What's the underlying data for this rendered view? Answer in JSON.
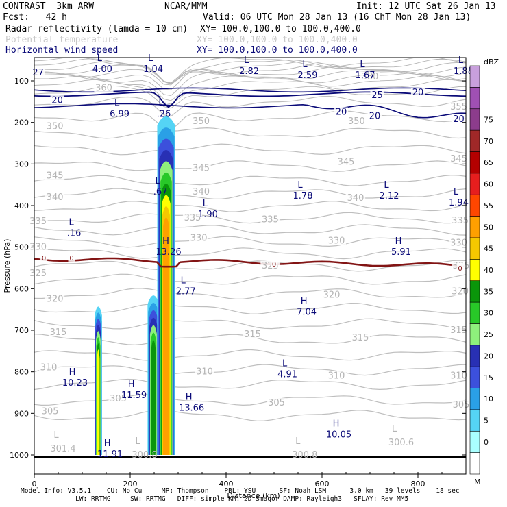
{
  "header": {
    "model": "CONTRAST  3km ARW",
    "org": "NCAR/MMM",
    "init": "Init: 12 UTC Sat 26 Jan 13",
    "fcst": "Fcst:   42 h",
    "valid": "Valid: 06 UTC Mon 28 Jan 13 (16 ChT Mon 28 Jan 13)",
    "field1": "Radar reflectivity (lamda = 10 cm)",
    "field1_xy": "XY= 100.0,100.0 to 100.0,400.0",
    "field2": "Potential temperature",
    "field2_xy": "XY= 100.0,100.0 to 100.0,400.0",
    "field3": "Horizontal wind speed",
    "field3_xy": "XY= 100.0,100.0 to 100.0,400.0"
  },
  "footer": {
    "line1": "Model Info: V3.5.1    CU: No Cu     MP: Thompson    PBL: YSU      SF: Noah LSM      3.0 km   39 levels    18 sec",
    "line2": "              LW: RRTMG     SW: RRTMG   DIFF: simple KM: 2D Smagor DAMP: Rayleigh3   SFLAY: Rev MM5"
  },
  "chart_data": {
    "type": "heatmap",
    "xlabel": "Distance (km)",
    "ylabel": "Pressure (hPa)",
    "xlim": [
      0,
      900
    ],
    "ylim": [
      1030,
      45
    ],
    "x_ticks": [
      0,
      200,
      400,
      600,
      800
    ],
    "y_ticks": [
      100,
      200,
      300,
      400,
      500,
      600,
      700,
      800,
      900,
      1000
    ],
    "colorbar": {
      "unit": "dBZ",
      "levels": [
        0,
        5,
        10,
        15,
        20,
        25,
        30,
        35,
        40,
        45,
        50,
        55,
        60,
        65,
        70,
        75
      ],
      "colors": [
        "#ffffff",
        "#aaffff",
        "#55d4f5",
        "#2aa0e6",
        "#3c50dc",
        "#2830b4",
        "#8ef07c",
        "#28c828",
        "#0a960a",
        "#ffff00",
        "#f5c800",
        "#ffa000",
        "#ff4600",
        "#e61e1e",
        "#b40000",
        "#a02828",
        "#8c3c8c",
        "#a050b4",
        "#c8a0dc"
      ]
    },
    "reflectivity_cells": [
      {
        "x0": 125,
        "x1": 142,
        "pbase": 1000,
        "ptop": 620,
        "max_dbz": 40
      },
      {
        "x0": 235,
        "x1": 262,
        "pbase": 1000,
        "ptop": 590,
        "max_dbz": 35
      },
      {
        "x0": 255,
        "x1": 295,
        "pbase": 1000,
        "ptop": 150,
        "max_dbz": 50
      }
    ],
    "theta_labels": [
      {
        "x": 33,
        "p": 895,
        "text": "305"
      },
      {
        "x": 175,
        "p": 865,
        "text": "305"
      },
      {
        "x": 505,
        "p": 875,
        "text": "305"
      },
      {
        "x": 890,
        "p": 880,
        "text": "305"
      },
      {
        "x": 30,
        "p": 790,
        "text": "310"
      },
      {
        "x": 355,
        "p": 800,
        "text": "310"
      },
      {
        "x": 630,
        "p": 810,
        "text": "310"
      },
      {
        "x": 885,
        "p": 810,
        "text": "310"
      },
      {
        "x": 50,
        "p": 705,
        "text": "315"
      },
      {
        "x": 455,
        "p": 710,
        "text": "315"
      },
      {
        "x": 680,
        "p": 718,
        "text": "315"
      },
      {
        "x": 885,
        "p": 700,
        "text": "315"
      },
      {
        "x": 43,
        "p": 625,
        "text": "320"
      },
      {
        "x": 620,
        "p": 615,
        "text": "320"
      },
      {
        "x": 888,
        "p": 607,
        "text": "320"
      },
      {
        "x": 8,
        "p": 563,
        "text": "325"
      },
      {
        "x": 492,
        "p": 545,
        "text": "325"
      },
      {
        "x": 890,
        "p": 545,
        "text": "325"
      },
      {
        "x": 8,
        "p": 500,
        "text": "330"
      },
      {
        "x": 343,
        "p": 478,
        "text": "330"
      },
      {
        "x": 630,
        "p": 485,
        "text": "330"
      },
      {
        "x": 885,
        "p": 490,
        "text": "330"
      },
      {
        "x": 8,
        "p": 438,
        "text": "335"
      },
      {
        "x": 330,
        "p": 430,
        "text": "335"
      },
      {
        "x": 492,
        "p": 434,
        "text": "335"
      },
      {
        "x": 888,
        "p": 436,
        "text": "335"
      },
      {
        "x": 43,
        "p": 380,
        "text": "340"
      },
      {
        "x": 348,
        "p": 367,
        "text": "340"
      },
      {
        "x": 670,
        "p": 382,
        "text": "340"
      },
      {
        "x": 43,
        "p": 328,
        "text": "345"
      },
      {
        "x": 348,
        "p": 310,
        "text": "345"
      },
      {
        "x": 650,
        "p": 295,
        "text": "345"
      },
      {
        "x": 885,
        "p": 288,
        "text": "345"
      },
      {
        "x": 43,
        "p": 210,
        "text": "350"
      },
      {
        "x": 348,
        "p": 197,
        "text": "350"
      },
      {
        "x": 672,
        "p": 197,
        "text": "350"
      },
      {
        "x": 885,
        "p": 163,
        "text": "355"
      },
      {
        "x": 145,
        "p": 117,
        "text": "360"
      },
      {
        "x": 700,
        "p": 90,
        "text": "380"
      }
    ],
    "wind_labels": [
      {
        "x": 8,
        "p": 80,
        "text": "27"
      },
      {
        "x": 48,
        "p": 147,
        "text": "20"
      },
      {
        "x": 715,
        "p": 135,
        "text": "25"
      },
      {
        "x": 800,
        "p": 128,
        "text": "20"
      },
      {
        "x": 640,
        "p": 175,
        "text": "20"
      },
      {
        "x": 710,
        "p": 185,
        "text": "20"
      },
      {
        "x": 885,
        "p": 192,
        "text": "20"
      }
    ],
    "freezing_labels": [
      {
        "x": 20,
        "p": 525,
        "text": "0"
      },
      {
        "x": 78,
        "p": 525,
        "text": "0"
      },
      {
        "x": 500,
        "p": 540,
        "text": "0"
      },
      {
        "x": 888,
        "p": 550,
        "text": "0"
      }
    ],
    "hl_markers": [
      {
        "x": 142,
        "p": 75,
        "letter": "L",
        "value": "4.00"
      },
      {
        "x": 248,
        "p": 75,
        "letter": "L",
        "value": "1.04"
      },
      {
        "x": 448,
        "p": 80,
        "letter": "L",
        "value": "2.82"
      },
      {
        "x": 570,
        "p": 90,
        "letter": "L",
        "value": "2.59"
      },
      {
        "x": 690,
        "p": 90,
        "letter": "L",
        "value": "1.67"
      },
      {
        "x": 895,
        "p": 80,
        "letter": "L",
        "value": "1.88"
      },
      {
        "x": 178,
        "p": 183,
        "letter": "L",
        "value": "6.99"
      },
      {
        "x": 270,
        "p": 183,
        "letter": "L",
        "value": ".26"
      },
      {
        "x": 263,
        "p": 370,
        "letter": "L",
        "value": ".67"
      },
      {
        "x": 362,
        "p": 425,
        "letter": "L",
        "value": "1.90"
      },
      {
        "x": 560,
        "p": 380,
        "letter": "L",
        "value": "1.78"
      },
      {
        "x": 740,
        "p": 380,
        "letter": "L",
        "value": "2.12"
      },
      {
        "x": 885,
        "p": 397,
        "letter": "L",
        "value": "1.94"
      },
      {
        "x": 83,
        "p": 470,
        "letter": "L",
        "value": ".16"
      },
      {
        "x": 280,
        "p": 515,
        "letter": "H",
        "value": "13.26"
      },
      {
        "x": 765,
        "p": 515,
        "letter": "H",
        "value": "5.91"
      },
      {
        "x": 316,
        "p": 610,
        "letter": "L",
        "value": "2.77"
      },
      {
        "x": 568,
        "p": 660,
        "letter": "H",
        "value": "7.04"
      },
      {
        "x": 528,
        "p": 810,
        "letter": "L",
        "value": "4.91"
      },
      {
        "x": 85,
        "p": 830,
        "letter": "H",
        "value": "10.23"
      },
      {
        "x": 208,
        "p": 860,
        "letter": "H",
        "value": "11.59"
      },
      {
        "x": 328,
        "p": 890,
        "letter": "H",
        "value": "13.66"
      },
      {
        "x": 635,
        "p": 955,
        "letter": "H",
        "value": "10.05"
      },
      {
        "x": 158,
        "p": 1002,
        "letter": "H",
        "value": "11.91"
      }
    ],
    "surface_labels": [
      {
        "x": 60,
        "p": 985,
        "text": "301.4"
      },
      {
        "x": 230,
        "p": 1000,
        "text": "300.8"
      },
      {
        "x": 564,
        "p": 1000,
        "text": "300.8"
      },
      {
        "x": 765,
        "p": 970,
        "text": "300.6"
      }
    ],
    "corner_label": "M"
  }
}
